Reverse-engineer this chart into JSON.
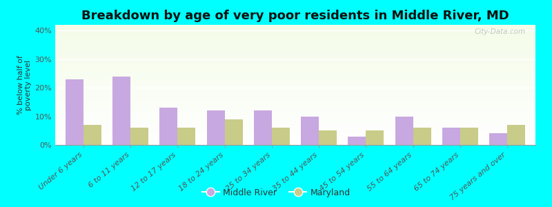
{
  "title": "Breakdown by age of very poor residents in Middle River, MD",
  "ylabel": "% below half of\npoverty level",
  "categories": [
    "Under 6 years",
    "6 to 11 years",
    "12 to 17 years",
    "18 to 24 years",
    "25 to 34 years",
    "35 to 44 years",
    "45 to 54 years",
    "55 to 64 years",
    "65 to 74 years",
    "75 years and over"
  ],
  "middle_river": [
    23,
    24,
    13,
    12,
    12,
    10,
    3,
    10,
    6,
    4
  ],
  "maryland": [
    7,
    6,
    6,
    9,
    6,
    5,
    5,
    6,
    6,
    7
  ],
  "bar_color_mr": "#c8a8e0",
  "bar_color_md": "#c8cc88",
  "background_color": "#00ffff",
  "gradient_top": "#f4fce8",
  "gradient_bottom": "#ffffff",
  "ylim": [
    0,
    42
  ],
  "yticks": [
    0,
    10,
    20,
    30,
    40
  ],
  "ytick_labels": [
    "0%",
    "10%",
    "20%",
    "30%",
    "40%"
  ],
  "title_fontsize": 13,
  "axis_label_fontsize": 8,
  "tick_label_fontsize": 8,
  "legend_fontsize": 9,
  "watermark": "City-Data.com"
}
